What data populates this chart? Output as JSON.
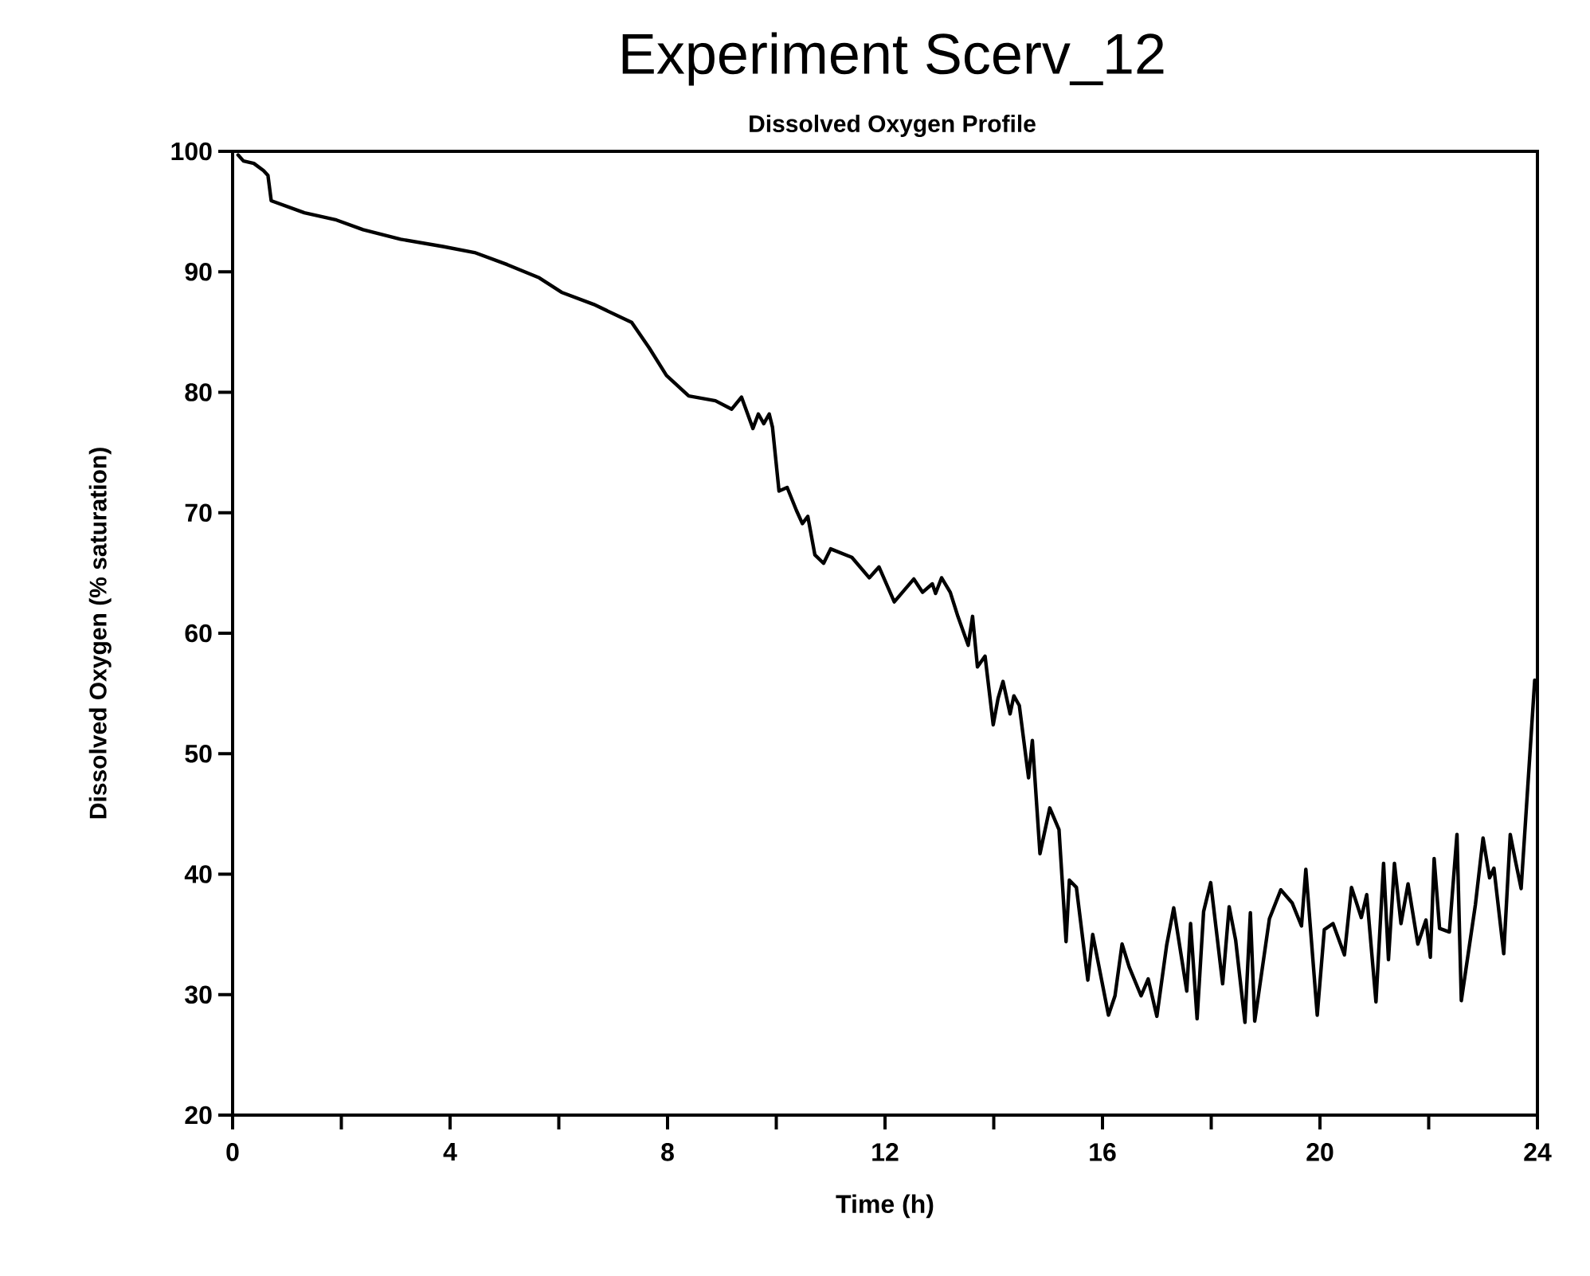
{
  "chart_data": {
    "type": "line",
    "title": "Experiment Scerv_12",
    "subtitle": "Dissolved Oxygen Profile",
    "xlabel": "Time (h)",
    "ylabel": "Dissolved Oxygen (% saturation)",
    "x": [
      0.1,
      0.2,
      0.39,
      0.57,
      0.65,
      0.71,
      1.32,
      1.91,
      2.4,
      3.09,
      3.87,
      4.45,
      5.05,
      5.64,
      6.05,
      6.64,
      7.34,
      7.66,
      7.98,
      8.39,
      8.88,
      9.18,
      9.36,
      9.57,
      9.67,
      9.77,
      9.87,
      9.93,
      10.05,
      10.2,
      10.37,
      10.48,
      10.58,
      10.71,
      10.87,
      11.0,
      11.39,
      11.71,
      11.89,
      12.17,
      12.53,
      12.69,
      12.87,
      12.93,
      13.04,
      13.2,
      13.34,
      13.53,
      13.61,
      13.7,
      13.84,
      13.99,
      14.08,
      14.17,
      14.3,
      14.37,
      14.47,
      14.64,
      14.71,
      14.85,
      15.03,
      15.2,
      15.33,
      15.39,
      15.52,
      15.73,
      15.82,
      16.11,
      16.23,
      16.36,
      16.49,
      16.71,
      16.84,
      17.0,
      17.18,
      17.31,
      17.55,
      17.62,
      17.74,
      17.86,
      17.99,
      18.21,
      18.33,
      18.45,
      18.62,
      18.72,
      18.8,
      19.07,
      19.28,
      19.49,
      19.66,
      19.74,
      19.95,
      20.08,
      20.24,
      20.45,
      20.58,
      20.76,
      20.86,
      21.03,
      21.17,
      21.26,
      21.37,
      21.49,
      21.62,
      21.8,
      21.95,
      22.03,
      22.1,
      22.2,
      22.38,
      22.52,
      22.6,
      22.86,
      23.0,
      23.12,
      23.2,
      23.38,
      23.5,
      23.6,
      23.7,
      23.95
    ],
    "values": [
      99.7,
      99.2,
      99.0,
      98.4,
      98.0,
      95.9,
      94.9,
      94.3,
      93.5,
      92.7,
      92.1,
      91.6,
      90.6,
      89.5,
      88.3,
      87.3,
      85.8,
      83.7,
      81.4,
      79.7,
      79.3,
      78.6,
      79.6,
      77.0,
      78.2,
      77.4,
      78.2,
      77.1,
      71.8,
      72.1,
      70.2,
      69.1,
      69.7,
      66.5,
      65.8,
      67.0,
      66.3,
      64.6,
      65.5,
      62.6,
      64.5,
      63.4,
      64.1,
      63.3,
      64.6,
      63.4,
      61.4,
      59.0,
      61.4,
      57.2,
      58.1,
      52.4,
      54.6,
      56.0,
      53.3,
      54.8,
      54.0,
      48.0,
      51.1,
      41.7,
      45.5,
      43.7,
      34.4,
      39.5,
      38.9,
      31.2,
      35.0,
      28.3,
      29.9,
      34.2,
      32.3,
      29.9,
      31.3,
      28.2,
      34.1,
      37.2,
      30.3,
      35.9,
      28.0,
      36.9,
      39.3,
      30.9,
      37.3,
      34.5,
      27.7,
      36.8,
      27.8,
      36.3,
      38.7,
      37.6,
      35.7,
      40.4,
      28.3,
      35.4,
      35.9,
      33.3,
      38.9,
      36.4,
      38.3,
      29.4,
      40.9,
      32.9,
      40.9,
      35.9,
      39.2,
      34.2,
      36.2,
      33.1,
      41.3,
      35.5,
      35.2,
      43.3,
      29.5,
      37.5,
      43.0,
      39.7,
      40.5,
      33.4,
      43.3,
      41.0,
      38.8,
      56.1
    ],
    "color": "#000000",
    "xlim": [
      0,
      24
    ],
    "ylim": [
      20,
      100
    ],
    "xticks": [
      0,
      {
        "value": 2,
        "label": null
      },
      4,
      {
        "value": 6,
        "label": null
      },
      8,
      {
        "value": 10,
        "label": null
      },
      12,
      {
        "value": 14,
        "label": null
      },
      16,
      {
        "value": 18,
        "label": null
      },
      20,
      {
        "value": 22,
        "label": null
      },
      24
    ],
    "yticks": [
      20,
      30,
      40,
      50,
      60,
      70,
      80,
      90,
      100
    ]
  }
}
